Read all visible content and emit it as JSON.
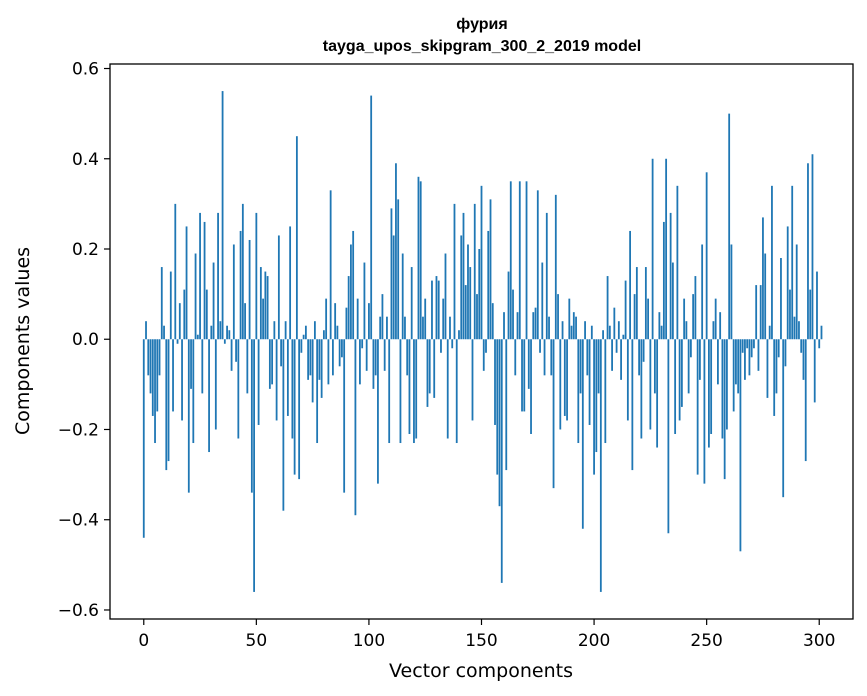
{
  "chart_data": {
    "type": "bar",
    "title_line1": "фурия",
    "title_line2": "tayga_upos_skipgram_300_2_2019 model",
    "xlabel": "Vector components",
    "ylabel": "Components values",
    "xlim": [
      -15,
      315
    ],
    "ylim": [
      -0.62,
      0.61
    ],
    "x_ticks": [
      0,
      50,
      100,
      150,
      200,
      250,
      300
    ],
    "x_tick_labels": [
      "0",
      "50",
      "100",
      "150",
      "200",
      "250",
      "300"
    ],
    "y_ticks": [
      -0.6,
      -0.4,
      -0.2,
      0.0,
      0.2,
      0.4,
      0.6
    ],
    "y_tick_labels": [
      "−0.6",
      "−0.4",
      "−0.2",
      "0.0",
      "0.2",
      "0.4",
      "0.6"
    ],
    "bar_color": "#1f77b4",
    "grid": false,
    "legend": "none",
    "values": [
      -0.44,
      0.04,
      -0.08,
      -0.12,
      -0.17,
      -0.23,
      -0.16,
      -0.08,
      0.16,
      0.03,
      -0.29,
      -0.27,
      0.15,
      -0.16,
      0.3,
      -0.01,
      0.08,
      -0.18,
      0.11,
      0.25,
      -0.34,
      -0.11,
      -0.23,
      0.19,
      0.01,
      0.28,
      -0.12,
      0.26,
      0.11,
      -0.25,
      0.03,
      0.17,
      -0.2,
      0.28,
      0.04,
      0.55,
      -0.01,
      0.03,
      0.02,
      -0.07,
      0.21,
      -0.05,
      -0.22,
      0.24,
      0.3,
      0.08,
      -0.12,
      0.22,
      -0.34,
      -0.56,
      0.28,
      -0.19,
      0.16,
      0.09,
      0.15,
      0.14,
      -0.11,
      -0.1,
      0.04,
      -0.18,
      0.23,
      -0.06,
      -0.38,
      0.04,
      -0.17,
      0.25,
      -0.22,
      -0.3,
      0.45,
      -0.31,
      -0.03,
      0.01,
      0.03,
      -0.09,
      -0.08,
      -0.14,
      0.04,
      -0.23,
      -0.09,
      -0.13,
      0.02,
      0.09,
      -0.1,
      0.33,
      -0.08,
      0.08,
      0.03,
      -0.06,
      -0.04,
      -0.34,
      0.07,
      0.14,
      0.21,
      0.24,
      -0.39,
      0.09,
      -0.1,
      -0.02,
      0.17,
      -0.07,
      0.08,
      0.54,
      -0.11,
      -0.08,
      -0.32,
      0.05,
      0.1,
      -0.07,
      0.05,
      -0.23,
      0.29,
      0.23,
      0.39,
      0.31,
      -0.23,
      0.19,
      0.05,
      -0.08,
      -0.21,
      0.16,
      -0.23,
      -0.22,
      0.36,
      0.35,
      0.05,
      0.09,
      -0.15,
      -0.12,
      0.13,
      -0.13,
      0.14,
      0.13,
      -0.03,
      0.09,
      0.19,
      -0.22,
      0.05,
      -0.02,
      0.3,
      -0.23,
      0.02,
      0.23,
      0.28,
      0.12,
      0.21,
      0.16,
      -0.18,
      0.3,
      0.1,
      0.2,
      0.34,
      -0.07,
      -0.03,
      0.24,
      0.31,
      0.08,
      -0.19,
      -0.3,
      -0.37,
      -0.54,
      0.06,
      -0.29,
      0.15,
      0.35,
      0.11,
      -0.08,
      0.06,
      0.35,
      -0.16,
      -0.16,
      0.35,
      -0.11,
      -0.21,
      0.06,
      0.07,
      0.33,
      -0.03,
      0.17,
      -0.08,
      0.28,
      0.05,
      -0.08,
      -0.33,
      0.32,
      0.1,
      -0.2,
      0.04,
      -0.17,
      -0.18,
      0.09,
      0.03,
      0.06,
      0.05,
      -0.23,
      -0.12,
      -0.42,
      0.04,
      -0.08,
      -0.19,
      0.03,
      -0.3,
      -0.25,
      -0.12,
      -0.56,
      0.02,
      -0.23,
      0.14,
      0.03,
      -0.07,
      0.07,
      -0.03,
      0.04,
      -0.09,
      0.01,
      0.13,
      -0.18,
      0.24,
      -0.29,
      0.1,
      0.16,
      -0.08,
      -0.22,
      -0.05,
      0.16,
      0.09,
      -0.2,
      0.4,
      -0.12,
      -0.24,
      0.06,
      0.03,
      0.26,
      0.4,
      -0.43,
      0.28,
      0.17,
      -0.21,
      0.34,
      -0.18,
      -0.15,
      0.09,
      0.04,
      -0.12,
      -0.04,
      0.1,
      0.14,
      -0.3,
      -0.09,
      0.21,
      -0.32,
      0.37,
      -0.24,
      -0.21,
      0.04,
      0.09,
      -0.1,
      0.06,
      -0.22,
      -0.31,
      -0.2,
      0.5,
      0.21,
      -0.16,
      -0.1,
      -0.12,
      -0.47,
      -0.03,
      -0.09,
      -0.02,
      -0.08,
      -0.04,
      -0.02,
      0.12,
      -0.07,
      0.12,
      0.27,
      0.19,
      -0.13,
      0.03,
      0.34,
      -0.17,
      -0.12,
      -0.04,
      0.18,
      -0.35,
      -0.06,
      0.25,
      0.11,
      0.34,
      0.05,
      0.21,
      0.04,
      -0.03,
      -0.09,
      -0.27,
      0.39,
      0.11,
      0.41,
      -0.14,
      0.15,
      -0.02,
      0.03
    ]
  }
}
